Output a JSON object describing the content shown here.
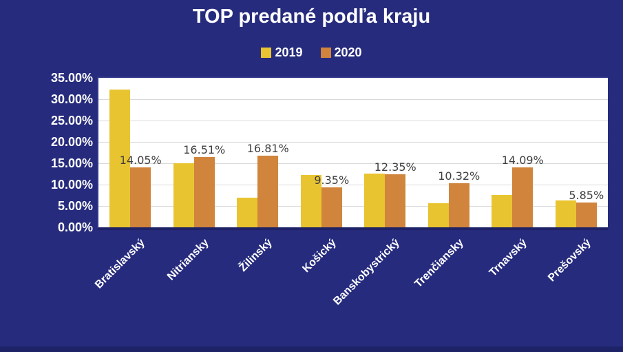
{
  "chart_data": {
    "type": "bar",
    "title": "TOP predané podľa kraju",
    "categories": [
      "Bratislavský",
      "Nitriansky",
      "Žilinský",
      "Košický",
      "Banskobystrický",
      "Trenčiansky",
      "Trnavský",
      "Prešovský"
    ],
    "series": [
      {
        "name": "2019",
        "color": "#e9c431",
        "values": [
          32.3,
          15.0,
          7.0,
          12.3,
          12.6,
          5.7,
          7.6,
          6.3
        ],
        "data_labels": null
      },
      {
        "name": "2020",
        "color": "#d0843c",
        "values": [
          14.05,
          16.51,
          16.81,
          9.35,
          12.35,
          10.32,
          14.09,
          5.85
        ],
        "data_labels": [
          "14.05%",
          "16.51%",
          "16.81%",
          "9.35%",
          "12.35%",
          "10.32%",
          "14.09%",
          "5.85%"
        ]
      }
    ],
    "xlabel": "",
    "ylabel": "",
    "ylim": [
      0,
      35
    ],
    "ytick_step": 5,
    "ytick_labels": [
      "0.00%",
      "5.00%",
      "10.00%",
      "15.00%",
      "20.00%",
      "25.00%",
      "30.00%",
      "35.00%"
    ],
    "grid": "horizontal",
    "legend_position": "top-center",
    "x_label_rotation_deg": 45
  },
  "colors": {
    "background": "#262b7d",
    "bottom_strip": "#1e2367",
    "plot_background": "#ffffff",
    "plot_border": "#30368a",
    "gridline": "#d9d9d9",
    "axis_band": "#1e2266",
    "axis_text": "#ffffff",
    "title_text": "#ffffff",
    "data_label_text": "#3f3f3f"
  }
}
